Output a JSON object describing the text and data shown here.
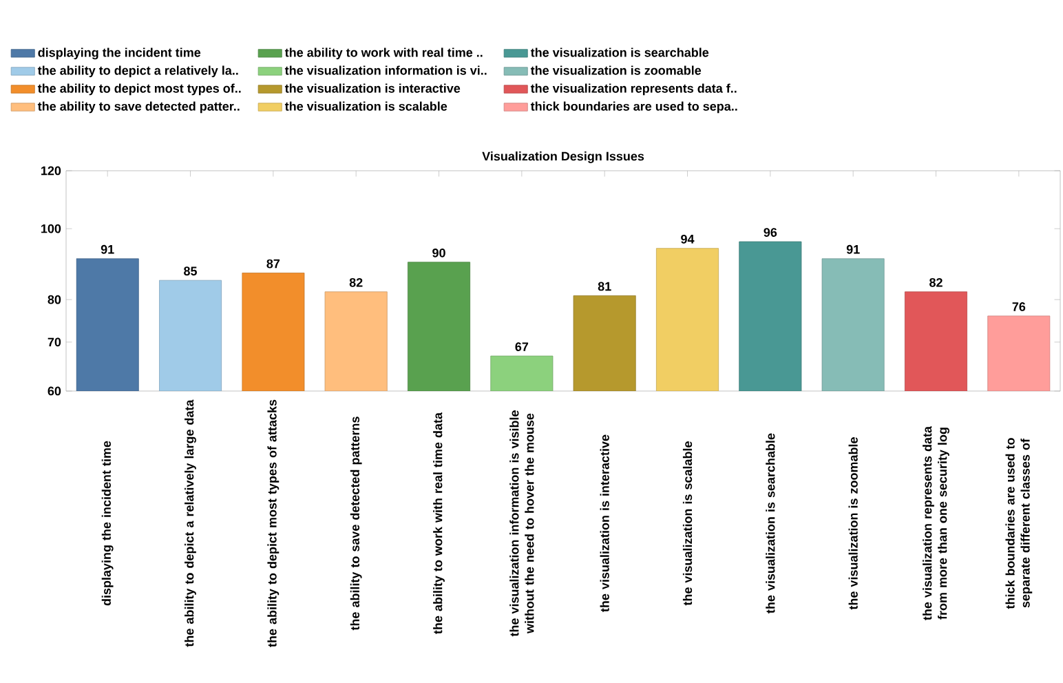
{
  "chart_data": {
    "type": "bar",
    "title": "Visualization Design Issues",
    "categories": [
      "displaying the incident time",
      "the ability to depict a relatively large data",
      "the ability to depict most types of attacks",
      "the ability to save detected patterns",
      "the ability to work with real time data",
      "the visualization information is visible without the need to hover the mouse",
      "the visualization is interactive",
      "the visualization is scalable",
      "the visualization is searchable",
      "the visualization is zoomable",
      "the visualization represents data from more than one security log",
      "thick boundaries are used to separate different classes of"
    ],
    "series": [
      {
        "name": "displaying the incident time",
        "color": "#4e79a7",
        "values": [
          91,
          null,
          null,
          null,
          null,
          null,
          null,
          null,
          null,
          null,
          null,
          null
        ]
      },
      {
        "name": "the ability to depict a relatively la..",
        "color": "#a0cbe8",
        "values": [
          null,
          85,
          null,
          null,
          null,
          null,
          null,
          null,
          null,
          null,
          null,
          null
        ]
      },
      {
        "name": "the ability to depict most types of..",
        "color": "#f28e2b",
        "values": [
          null,
          null,
          87,
          null,
          null,
          null,
          null,
          null,
          null,
          null,
          null,
          null
        ]
      },
      {
        "name": "the ability to save detected patter..",
        "color": "#ffbe7d",
        "values": [
          null,
          null,
          null,
          82,
          null,
          null,
          null,
          null,
          null,
          null,
          null,
          null
        ]
      },
      {
        "name": "the ability to work with real time ..",
        "color": "#59a14f",
        "values": [
          null,
          null,
          null,
          null,
          90,
          null,
          null,
          null,
          null,
          null,
          null,
          null
        ]
      },
      {
        "name": "the visualization information is vi..",
        "color": "#8cd17d",
        "values": [
          null,
          null,
          null,
          null,
          null,
          67,
          null,
          null,
          null,
          null,
          null,
          null
        ]
      },
      {
        "name": "the visualization is interactive",
        "color": "#b6992d",
        "values": [
          null,
          null,
          null,
          null,
          null,
          null,
          81,
          null,
          null,
          null,
          null,
          null
        ]
      },
      {
        "name": "the visualization is scalable",
        "color": "#f1ce63",
        "values": [
          null,
          null,
          null,
          null,
          null,
          null,
          null,
          94,
          null,
          null,
          null,
          null
        ]
      },
      {
        "name": "the visualization is searchable",
        "color": "#499894",
        "values": [
          null,
          null,
          null,
          null,
          null,
          null,
          null,
          null,
          96,
          null,
          null,
          null
        ]
      },
      {
        "name": "the visualization is zoomable",
        "color": "#86bcb6",
        "values": [
          null,
          null,
          null,
          null,
          null,
          null,
          null,
          null,
          null,
          91,
          null,
          null
        ]
      },
      {
        "name": "the visualization represents data f..",
        "color": "#e15759",
        "values": [
          null,
          null,
          null,
          null,
          null,
          null,
          null,
          null,
          null,
          null,
          82,
          null
        ]
      },
      {
        "name": "thick boundaries are used to sepa..",
        "color": "#ff9d9a",
        "values": [
          null,
          null,
          null,
          null,
          null,
          null,
          null,
          null,
          null,
          null,
          null,
          76
        ]
      }
    ],
    "ylim": [
      60,
      120
    ],
    "yticks": [
      60,
      70,
      80,
      100,
      120
    ],
    "log": true,
    "data_labels": true,
    "legend": "top",
    "grid": false
  }
}
